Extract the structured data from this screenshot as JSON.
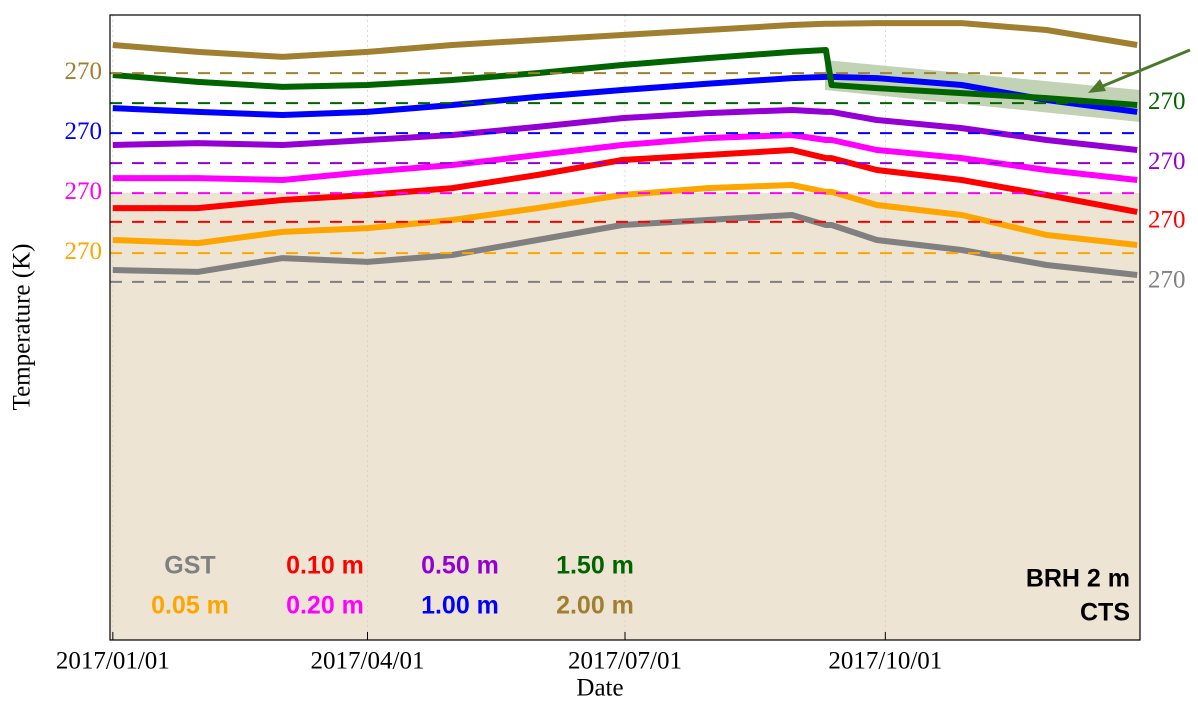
{
  "chart_data": {
    "type": "line",
    "xlabel": "Date",
    "ylabel": "Temperature (K)",
    "annotations": [
      "BRH 2 m",
      "CTS"
    ],
    "x": [
      0,
      30,
      60,
      90,
      120,
      150,
      180,
      210,
      240,
      252,
      254,
      270,
      300,
      330,
      362
    ],
    "xlim": [
      -1,
      363
    ],
    "xticks": [
      {
        "value": 0,
        "label": "2017/01/01"
      },
      {
        "value": 90,
        "label": "2017/04/01"
      },
      {
        "value": 181,
        "label": "2017/07/01"
      },
      {
        "value": 273,
        "label": "2017/10/01"
      }
    ],
    "ylim": [
      0,
      100
    ],
    "series": [
      {
        "name": "GST",
        "color": "#808080",
        "ref_tick": {
          "value": 57.3,
          "label": "270"
        },
        "tick_side": "right",
        "values": [
          59.2,
          58.9,
          61.1,
          60.5,
          61.6,
          64,
          66.4,
          67.2,
          68,
          66.4,
          66.4,
          64,
          62.4,
          60,
          58.4
        ]
      },
      {
        "name": "0.05 m",
        "color": "#ffa500",
        "ref_tick": {
          "value": 61.9,
          "label": "270"
        },
        "tick_side": "left",
        "values": [
          64,
          63.5,
          65.3,
          65.9,
          67.2,
          69.1,
          71.2,
          72.3,
          72.8,
          71.7,
          71.7,
          69.6,
          68,
          64.8,
          63.2
        ]
      },
      {
        "name": "0.10 m",
        "color": "#ff0000",
        "ref_tick": {
          "value": 66.9,
          "label": "270"
        },
        "tick_side": "right",
        "values": [
          69.1,
          69.1,
          70.4,
          71.2,
          72.3,
          74.4,
          76.8,
          77.6,
          78.4,
          77.1,
          77.1,
          75.2,
          73.6,
          71.2,
          68.5
        ]
      },
      {
        "name": "0.20 m",
        "color": "#ff00ff",
        "ref_tick": {
          "value": 71.5,
          "label": "270"
        },
        "tick_side": "left",
        "values": [
          73.9,
          73.9,
          73.6,
          74.9,
          76,
          77.6,
          79.2,
          80.3,
          80.8,
          80,
          80,
          78.4,
          77.1,
          75.2,
          73.6
        ]
      },
      {
        "name": "0.50 m",
        "color": "#9400d3",
        "ref_tick": {
          "value": 76.3,
          "label": "270"
        },
        "tick_side": "right",
        "values": [
          79.2,
          79.5,
          79.2,
          80,
          80.8,
          82.1,
          83.5,
          84.3,
          84.8,
          84.5,
          84.5,
          83.2,
          81.9,
          80,
          78.4
        ]
      },
      {
        "name": "1.00 m",
        "color": "#0000ff",
        "ref_tick": {
          "value": 81.1,
          "label": "270"
        },
        "tick_side": "left",
        "values": [
          85.1,
          84.5,
          84,
          84.5,
          85.6,
          86.9,
          88,
          89,
          89.9,
          90.1,
          90.1,
          89.9,
          88.8,
          86.4,
          84.5
        ]
      },
      {
        "name": "1.50 m",
        "color": "#006400",
        "ref_tick": {
          "value": 85.9,
          "label": "270"
        },
        "tick_side": "right",
        "values": [
          90.4,
          89.3,
          88.5,
          88.8,
          89.6,
          90.7,
          92,
          93.1,
          94.1,
          94.4,
          88.8,
          88.3,
          87.5,
          86.7,
          85.6
        ]
      },
      {
        "name": "2.00 m",
        "color": "#a08030",
        "ref_tick": {
          "value": 90.7,
          "label": "270"
        },
        "tick_side": "left",
        "values": [
          95.2,
          94.1,
          93.3,
          94.1,
          95.2,
          96,
          96.8,
          97.6,
          98.4,
          98.6,
          98.6,
          98.7,
          98.7,
          97.6,
          95.2
        ]
      }
    ]
  }
}
